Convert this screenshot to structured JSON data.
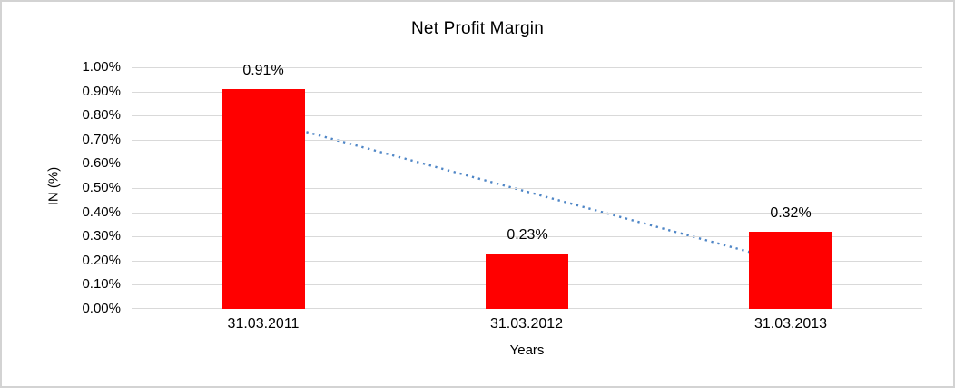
{
  "chart_data": {
    "type": "bar",
    "title": "Net Profit Margin",
    "xlabel": "Years",
    "ylabel": "IN (%)",
    "categories": [
      "31.03.2011",
      "31.03.2012",
      "31.03.2013"
    ],
    "values": [
      0.91,
      0.23,
      0.32
    ],
    "data_labels": [
      "0.91%",
      "0.23%",
      "0.32%"
    ],
    "ylim": [
      0,
      1
    ],
    "ytick_step": 0.1,
    "ytick_labels": [
      "0.00%",
      "0.10%",
      "0.20%",
      "0.30%",
      "0.40%",
      "0.50%",
      "0.60%",
      "0.70%",
      "0.80%",
      "0.90%",
      "1.00%"
    ],
    "grid": true,
    "legend": false,
    "bar_color": "#ff0000",
    "gridline_color": "#d9d9d9",
    "text_color": "#000000",
    "trendline": {
      "type": "linear",
      "style": "dotted",
      "color": "#4f86c6",
      "start_value": 0.78,
      "end_value": 0.19
    }
  }
}
